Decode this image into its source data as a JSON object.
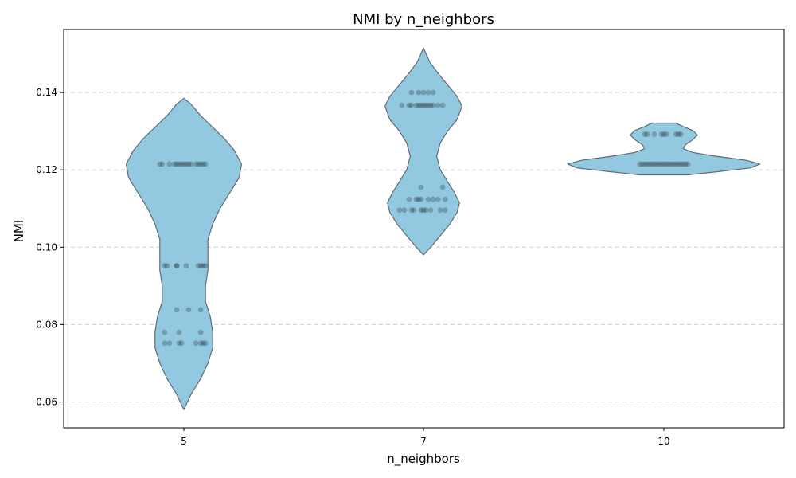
{
  "chart_data": {
    "type": "violin",
    "title": "NMI by n_neighbors",
    "xlabel": "n_neighbors",
    "ylabel": "NMI",
    "categories": [
      "5",
      "7",
      "10"
    ],
    "ylim": [
      0.0533,
      0.1563
    ],
    "yticks": [
      0.06,
      0.08,
      0.1,
      0.12,
      0.14
    ],
    "ytick_labels": [
      "0.06",
      "0.08",
      "0.10",
      "0.12",
      "0.14"
    ],
    "grid": {
      "y": true,
      "x": false,
      "style": "dashed"
    },
    "violin_color": "#92c9e0",
    "violin_edge_color": "#5f6b73",
    "point_color": "#000000",
    "point_opacity": 0.22,
    "groups": [
      {
        "category": "5",
        "ymin": 0.058,
        "ymax": 0.1385,
        "density": [
          [
            0.058,
            0.0
          ],
          [
            0.062,
            0.03
          ],
          [
            0.066,
            0.07
          ],
          [
            0.07,
            0.1
          ],
          [
            0.074,
            0.12
          ],
          [
            0.078,
            0.12
          ],
          [
            0.082,
            0.11
          ],
          [
            0.086,
            0.09
          ],
          [
            0.09,
            0.09
          ],
          [
            0.094,
            0.1
          ],
          [
            0.098,
            0.1
          ],
          [
            0.102,
            0.1
          ],
          [
            0.106,
            0.12
          ],
          [
            0.11,
            0.15
          ],
          [
            0.114,
            0.19
          ],
          [
            0.118,
            0.23
          ],
          [
            0.1215,
            0.24
          ],
          [
            0.125,
            0.21
          ],
          [
            0.128,
            0.17
          ],
          [
            0.131,
            0.12
          ],
          [
            0.134,
            0.07
          ],
          [
            0.137,
            0.03
          ],
          [
            0.1385,
            0.0
          ]
        ],
        "points": [
          {
            "y": 0.1215,
            "offsets": [
              -0.1,
              -0.09,
              -0.06,
              -0.04,
              -0.03,
              -0.02,
              -0.01,
              0.0,
              0.01,
              0.02,
              0.03,
              0.05,
              0.06,
              0.07,
              0.08,
              0.09
            ]
          },
          {
            "y": 0.0952,
            "offsets": [
              -0.08,
              -0.07,
              -0.03,
              -0.03,
              0.01,
              0.06,
              0.07,
              0.08,
              0.09
            ]
          },
          {
            "y": 0.0838,
            "offsets": [
              -0.03,
              0.02,
              0.07
            ]
          },
          {
            "y": 0.078,
            "offsets": [
              -0.08,
              -0.02,
              0.07
            ]
          },
          {
            "y": 0.0752,
            "offsets": [
              -0.08,
              -0.06,
              -0.02,
              -0.01,
              0.05,
              0.07,
              0.08,
              0.09
            ]
          }
        ]
      },
      {
        "category": "7",
        "ymin": 0.098,
        "ymax": 0.1515,
        "density": [
          [
            0.098,
            0.0
          ],
          [
            0.1,
            0.03
          ],
          [
            0.103,
            0.07
          ],
          [
            0.106,
            0.11
          ],
          [
            0.109,
            0.14
          ],
          [
            0.1115,
            0.15
          ],
          [
            0.114,
            0.13
          ],
          [
            0.117,
            0.1
          ],
          [
            0.12,
            0.07
          ],
          [
            0.1235,
            0.055
          ],
          [
            0.127,
            0.07
          ],
          [
            0.13,
            0.1
          ],
          [
            0.133,
            0.14
          ],
          [
            0.1365,
            0.16
          ],
          [
            0.139,
            0.14
          ],
          [
            0.142,
            0.1
          ],
          [
            0.145,
            0.06
          ],
          [
            0.148,
            0.025
          ],
          [
            0.1515,
            0.0
          ]
        ],
        "points": [
          {
            "y": 0.14,
            "offsets": [
              -0.05,
              -0.02,
              0.0,
              0.02,
              0.04
            ]
          },
          {
            "y": 0.1367,
            "offsets": [
              -0.09,
              -0.06,
              -0.05,
              -0.03,
              -0.02,
              -0.01,
              0.0,
              0.01,
              0.02,
              0.03,
              0.04,
              0.06,
              0.08
            ]
          },
          {
            "y": 0.1155,
            "offsets": [
              -0.01,
              0.08
            ]
          },
          {
            "y": 0.1124,
            "offsets": [
              -0.06,
              -0.03,
              -0.02,
              -0.01,
              0.02,
              0.04,
              0.06,
              0.09
            ]
          },
          {
            "y": 0.1096,
            "offsets": [
              -0.1,
              -0.08,
              -0.05,
              -0.04,
              -0.01,
              0.0,
              0.01,
              0.03,
              0.07,
              0.09
            ]
          }
        ]
      },
      {
        "category": "10",
        "ymin": 0.1187,
        "ymax": 0.1321,
        "density": [
          [
            0.1187,
            0.1
          ],
          [
            0.1195,
            0.22
          ],
          [
            0.1205,
            0.36
          ],
          [
            0.1215,
            0.4
          ],
          [
            0.1225,
            0.34
          ],
          [
            0.1235,
            0.22
          ],
          [
            0.1245,
            0.12
          ],
          [
            0.1255,
            0.08
          ],
          [
            0.1265,
            0.09
          ],
          [
            0.1278,
            0.12
          ],
          [
            0.129,
            0.14
          ],
          [
            0.1302,
            0.12
          ],
          [
            0.1312,
            0.08
          ],
          [
            0.1321,
            0.05
          ]
        ],
        "points": [
          {
            "y": 0.1292,
            "offsets": [
              -0.08,
              -0.07,
              -0.04,
              -0.01,
              0.0,
              0.01,
              0.05,
              0.06,
              0.07
            ]
          },
          {
            "y": 0.1215,
            "offsets": [
              -0.1,
              -0.09,
              -0.08,
              -0.07,
              -0.06,
              -0.05,
              -0.04,
              -0.03,
              -0.02,
              -0.01,
              0.0,
              0.01,
              0.02,
              0.03,
              0.04,
              0.05,
              0.06,
              0.07,
              0.08,
              0.09,
              0.1
            ]
          }
        ]
      }
    ]
  }
}
